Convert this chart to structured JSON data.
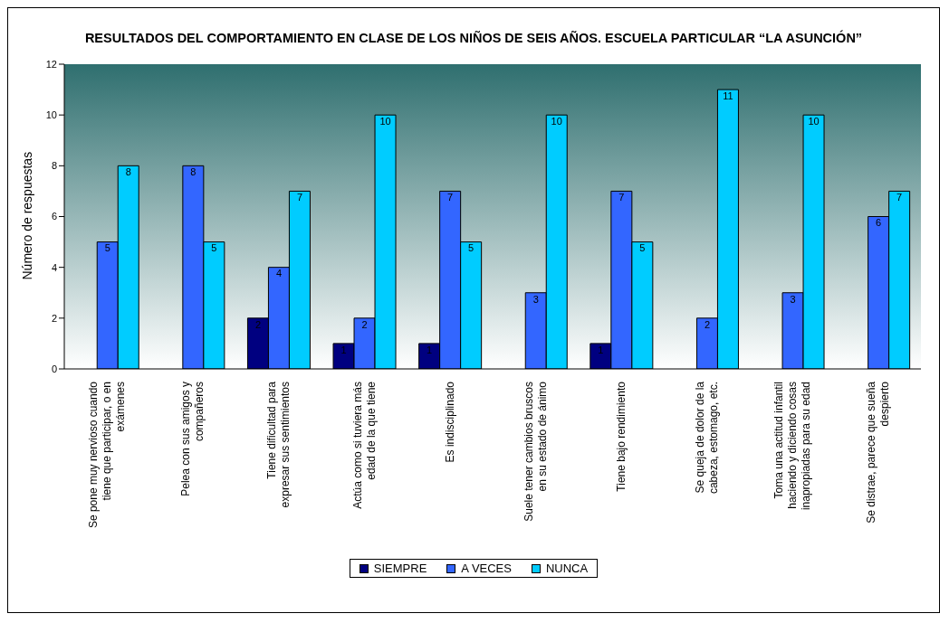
{
  "chart_data": {
    "type": "bar",
    "title": "RESULTADOS DEL COMPORTAMIENTO EN CLASE DE LOS NIÑOS DE SEIS AÑOS. ESCUELA PARTICULAR “LA ASUNCIÓN”",
    "ylabel": "Número de respuestas",
    "categories": [
      "Se pone muy nervioso cuando tiene que participar, o en exámenes",
      "Pelea con sus amigos y compañeros",
      "Tiene dificultad para expresar sus sentimientos",
      "Actúa como si tuviera más edad de la que tiene",
      "Es indisciplinado",
      "Suele tener cambios bruscos en su estado de ánimo",
      "Tiene bajo rendimiento",
      "Se queja de dolor de la cabeza, estomago, etc.",
      "Toma una actitud infantil haciendo y diciendo cosas inapropiadas para su edad",
      "Se distrae, parece que sueña despierto"
    ],
    "series": [
      {
        "name": "SIEMPRE",
        "color": "#000080",
        "values": [
          null,
          null,
          2,
          1,
          1,
          null,
          1,
          null,
          null,
          null
        ]
      },
      {
        "name": "A VECES",
        "color": "#3366ff",
        "values": [
          5,
          8,
          4,
          2,
          7,
          3,
          7,
          2,
          3,
          6
        ]
      },
      {
        "name": "NUNCA",
        "color": "#00ccff",
        "values": [
          8,
          5,
          7,
          10,
          5,
          10,
          5,
          11,
          10,
          7
        ]
      }
    ],
    "ylim": [
      0,
      12
    ],
    "yticks": [
      0,
      2,
      4,
      6,
      8,
      10,
      12
    ],
    "data_labels": true,
    "legend": "bottom"
  }
}
